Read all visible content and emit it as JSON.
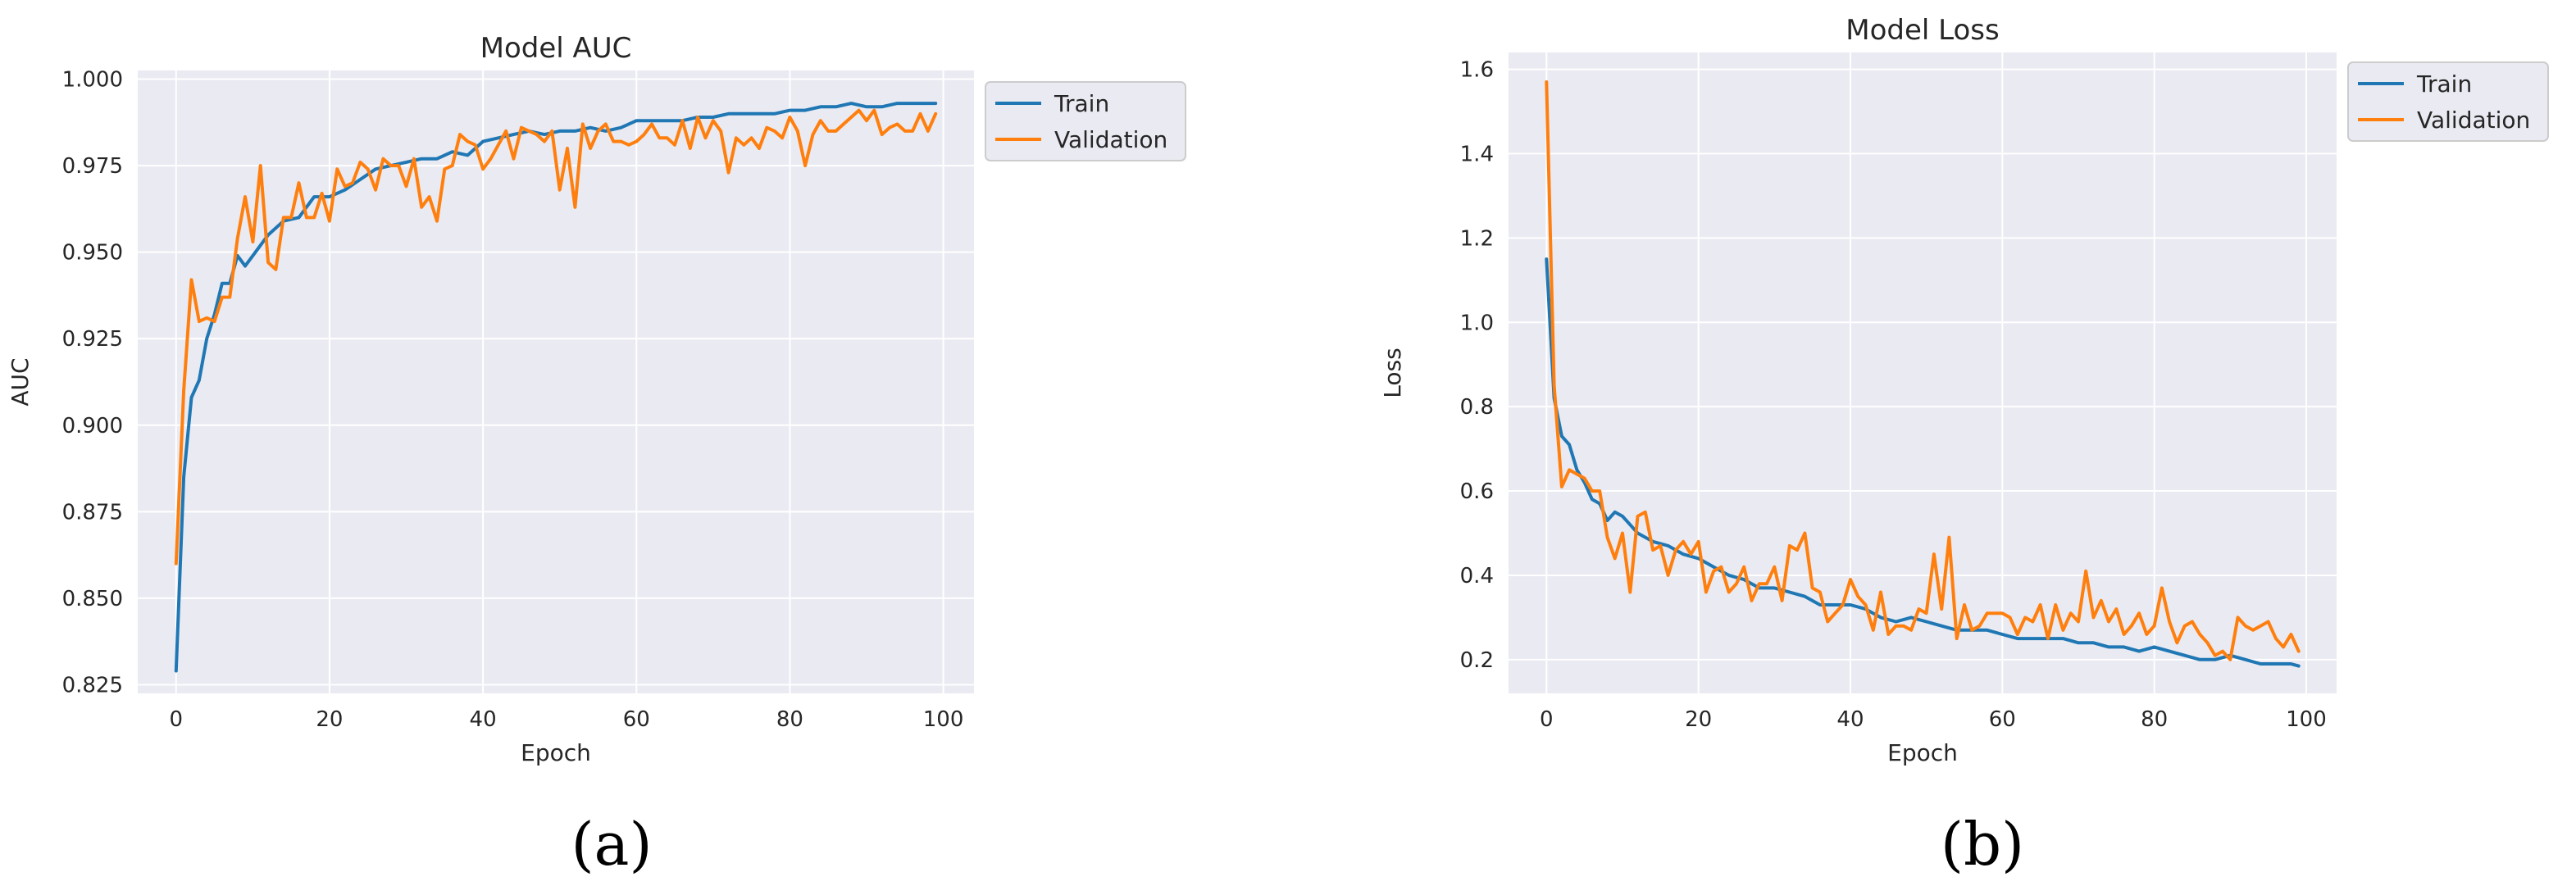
{
  "chart_data": [
    {
      "type": "line",
      "title": "Model AUC",
      "xlabel": "Epoch",
      "ylabel": "AUC",
      "xlim": [
        -5,
        104
      ],
      "ylim": [
        0.8225,
        1.0025
      ],
      "xticks": [
        0,
        20,
        40,
        60,
        80,
        100
      ],
      "yticks": [
        0.825,
        0.85,
        0.875,
        0.9,
        0.925,
        0.95,
        0.975,
        1.0
      ],
      "ytick_labels": [
        "0.825",
        "0.850",
        "0.875",
        "0.900",
        "0.925",
        "0.950",
        "0.975",
        "1.000"
      ],
      "grid": true,
      "legend": "outside-top-right",
      "caption": "(a)",
      "series": [
        {
          "name": "Train",
          "color": "#1f77b4",
          "x": [
            0,
            1,
            2,
            3,
            4,
            5,
            6,
            7,
            8,
            9,
            10,
            12,
            14,
            16,
            18,
            20,
            22,
            24,
            26,
            28,
            30,
            32,
            34,
            36,
            38,
            40,
            42,
            44,
            46,
            48,
            50,
            52,
            54,
            56,
            58,
            60,
            62,
            64,
            66,
            68,
            70,
            72,
            74,
            76,
            78,
            80,
            82,
            84,
            86,
            88,
            90,
            92,
            94,
            96,
            98,
            99
          ],
          "values": [
            0.829,
            0.885,
            0.908,
            0.913,
            0.925,
            0.932,
            0.941,
            0.941,
            0.949,
            0.946,
            0.949,
            0.955,
            0.959,
            0.96,
            0.966,
            0.966,
            0.968,
            0.971,
            0.974,
            0.975,
            0.976,
            0.977,
            0.977,
            0.979,
            0.978,
            0.982,
            0.983,
            0.984,
            0.985,
            0.984,
            0.985,
            0.985,
            0.986,
            0.985,
            0.986,
            0.988,
            0.988,
            0.988,
            0.988,
            0.989,
            0.989,
            0.99,
            0.99,
            0.99,
            0.99,
            0.991,
            0.991,
            0.992,
            0.992,
            0.993,
            0.992,
            0.992,
            0.993,
            0.993,
            0.993,
            0.993
          ]
        },
        {
          "name": "Validation",
          "color": "#ff7f0e",
          "x": [
            0,
            1,
            2,
            3,
            4,
            5,
            6,
            7,
            8,
            9,
            10,
            11,
            12,
            13,
            14,
            15,
            16,
            17,
            18,
            19,
            20,
            21,
            22,
            23,
            24,
            25,
            26,
            27,
            28,
            29,
            30,
            31,
            32,
            33,
            34,
            35,
            36,
            37,
            38,
            39,
            40,
            41,
            42,
            43,
            44,
            45,
            46,
            47,
            48,
            49,
            50,
            51,
            52,
            53,
            54,
            55,
            56,
            57,
            58,
            59,
            60,
            61,
            62,
            63,
            64,
            65,
            66,
            67,
            68,
            69,
            70,
            71,
            72,
            73,
            74,
            75,
            76,
            77,
            78,
            79,
            80,
            81,
            82,
            83,
            84,
            85,
            86,
            87,
            88,
            89,
            90,
            91,
            92,
            93,
            94,
            95,
            96,
            97,
            98,
            99
          ],
          "values": [
            0.86,
            0.91,
            0.942,
            0.93,
            0.931,
            0.93,
            0.937,
            0.937,
            0.954,
            0.966,
            0.953,
            0.975,
            0.947,
            0.945,
            0.96,
            0.96,
            0.97,
            0.96,
            0.96,
            0.967,
            0.959,
            0.974,
            0.969,
            0.97,
            0.976,
            0.974,
            0.968,
            0.977,
            0.975,
            0.975,
            0.969,
            0.977,
            0.963,
            0.966,
            0.959,
            0.974,
            0.975,
            0.984,
            0.982,
            0.981,
            0.974,
            0.977,
            0.981,
            0.985,
            0.977,
            0.986,
            0.985,
            0.984,
            0.982,
            0.985,
            0.968,
            0.98,
            0.963,
            0.987,
            0.98,
            0.985,
            0.987,
            0.982,
            0.982,
            0.981,
            0.982,
            0.984,
            0.987,
            0.983,
            0.983,
            0.981,
            0.988,
            0.98,
            0.989,
            0.983,
            0.988,
            0.985,
            0.973,
            0.983,
            0.981,
            0.983,
            0.98,
            0.986,
            0.985,
            0.983,
            0.989,
            0.985,
            0.975,
            0.984,
            0.988,
            0.985,
            0.985,
            0.987,
            0.989,
            0.991,
            0.988,
            0.991,
            0.984,
            0.986,
            0.987,
            0.985,
            0.985,
            0.99,
            0.985,
            0.99
          ]
        }
      ]
    },
    {
      "type": "line",
      "title": "Model Loss",
      "xlabel": "Epoch",
      "ylabel": "Loss",
      "xlim": [
        -5,
        104
      ],
      "ylim": [
        0.12,
        1.64
      ],
      "xticks": [
        0,
        20,
        40,
        60,
        80,
        100
      ],
      "yticks": [
        0.2,
        0.4,
        0.6,
        0.8,
        1.0,
        1.2,
        1.4,
        1.6
      ],
      "ytick_labels": [
        "0.2",
        "0.4",
        "0.6",
        "0.8",
        "1.0",
        "1.2",
        "1.4",
        "1.6"
      ],
      "grid": true,
      "legend": "outside-top-right",
      "caption": "(b)",
      "series": [
        {
          "name": "Train",
          "color": "#1f77b4",
          "x": [
            0,
            1,
            2,
            3,
            4,
            5,
            6,
            7,
            8,
            9,
            10,
            11,
            12,
            14,
            16,
            18,
            20,
            22,
            24,
            26,
            28,
            30,
            32,
            34,
            36,
            38,
            40,
            42,
            44,
            46,
            48,
            50,
            52,
            54,
            56,
            58,
            60,
            62,
            64,
            66,
            68,
            70,
            72,
            74,
            76,
            78,
            80,
            82,
            84,
            86,
            88,
            90,
            92,
            94,
            96,
            98,
            99
          ],
          "values": [
            1.15,
            0.82,
            0.73,
            0.71,
            0.65,
            0.62,
            0.58,
            0.57,
            0.53,
            0.55,
            0.54,
            0.52,
            0.5,
            0.48,
            0.47,
            0.45,
            0.44,
            0.42,
            0.4,
            0.39,
            0.37,
            0.37,
            0.36,
            0.35,
            0.33,
            0.33,
            0.33,
            0.32,
            0.3,
            0.29,
            0.3,
            0.29,
            0.28,
            0.27,
            0.27,
            0.27,
            0.26,
            0.25,
            0.25,
            0.25,
            0.25,
            0.24,
            0.24,
            0.23,
            0.23,
            0.22,
            0.23,
            0.22,
            0.21,
            0.2,
            0.2,
            0.21,
            0.2,
            0.19,
            0.19,
            0.19,
            0.185
          ]
        },
        {
          "name": "Validation",
          "color": "#ff7f0e",
          "x": [
            0,
            1,
            2,
            3,
            4,
            5,
            6,
            7,
            8,
            9,
            10,
            11,
            12,
            13,
            14,
            15,
            16,
            17,
            18,
            19,
            20,
            21,
            22,
            23,
            24,
            25,
            26,
            27,
            28,
            29,
            30,
            31,
            32,
            33,
            34,
            35,
            36,
            37,
            38,
            39,
            40,
            41,
            42,
            43,
            44,
            45,
            46,
            47,
            48,
            49,
            50,
            51,
            52,
            53,
            54,
            55,
            56,
            57,
            58,
            59,
            60,
            61,
            62,
            63,
            64,
            65,
            66,
            67,
            68,
            69,
            70,
            71,
            72,
            73,
            74,
            75,
            76,
            77,
            78,
            79,
            80,
            81,
            82,
            83,
            84,
            85,
            86,
            87,
            88,
            89,
            90,
            91,
            92,
            93,
            94,
            95,
            96,
            97,
            98,
            99
          ],
          "values": [
            1.57,
            0.85,
            0.61,
            0.65,
            0.64,
            0.63,
            0.6,
            0.6,
            0.49,
            0.44,
            0.5,
            0.36,
            0.54,
            0.55,
            0.46,
            0.47,
            0.4,
            0.46,
            0.48,
            0.45,
            0.48,
            0.36,
            0.41,
            0.42,
            0.36,
            0.38,
            0.42,
            0.34,
            0.38,
            0.38,
            0.42,
            0.34,
            0.47,
            0.46,
            0.5,
            0.37,
            0.36,
            0.29,
            0.31,
            0.33,
            0.39,
            0.35,
            0.33,
            0.27,
            0.36,
            0.26,
            0.28,
            0.28,
            0.27,
            0.32,
            0.31,
            0.45,
            0.32,
            0.49,
            0.25,
            0.33,
            0.27,
            0.28,
            0.31,
            0.31,
            0.31,
            0.3,
            0.26,
            0.3,
            0.29,
            0.33,
            0.25,
            0.33,
            0.27,
            0.31,
            0.29,
            0.41,
            0.3,
            0.34,
            0.29,
            0.32,
            0.26,
            0.28,
            0.31,
            0.26,
            0.28,
            0.37,
            0.29,
            0.24,
            0.28,
            0.29,
            0.26,
            0.24,
            0.21,
            0.22,
            0.2,
            0.3,
            0.28,
            0.27,
            0.28,
            0.29,
            0.25,
            0.23,
            0.26,
            0.22
          ]
        }
      ]
    }
  ]
}
